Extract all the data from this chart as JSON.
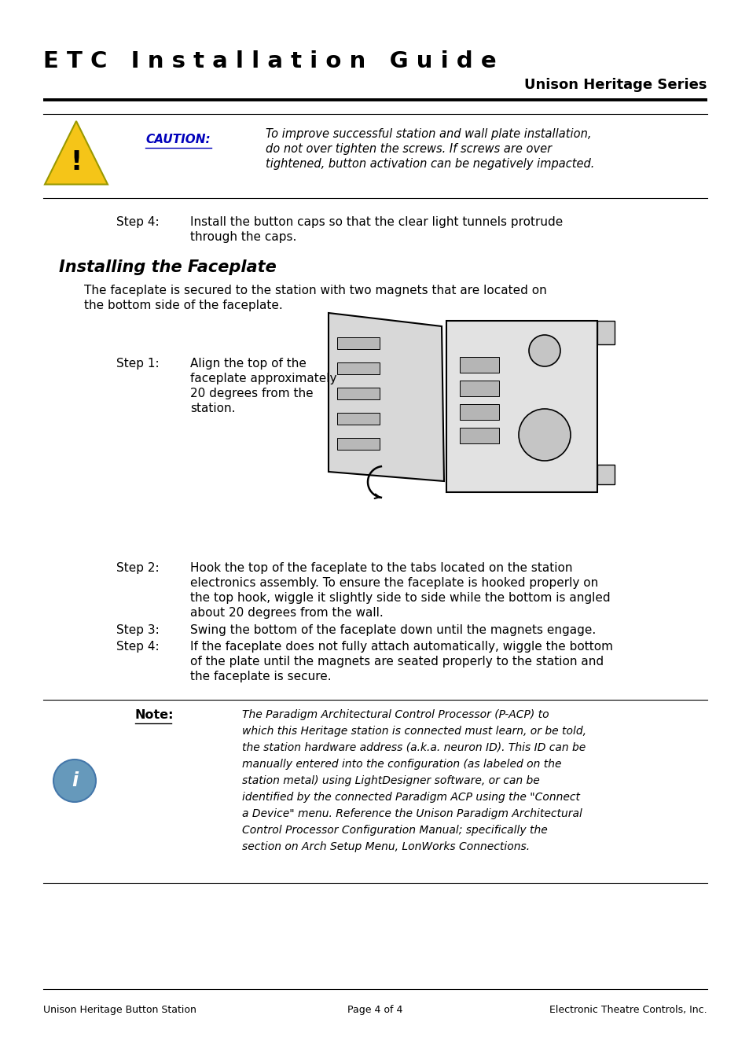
{
  "title": "E T C   I n s t a l l a t i o n   G u i d e",
  "subtitle": "Unison Heritage Series",
  "bg_color": "#ffffff",
  "text_color": "#000000",
  "caution_label": "CAUTION:",
  "caution_line1": "To improve successful station and wall plate installation,",
  "caution_line2": "do not over tighten the screws. If screws are over",
  "caution_line3": "tightened, button activation can be negatively impacted.",
  "step4_label": "Step 4:",
  "step4_line1": "Install the button caps so that the clear light tunnels protrude",
  "step4_line2": "through the caps.",
  "section_title": "Installing the Faceplate",
  "section_line1": "The faceplate is secured to the station with two magnets that are located on",
  "section_line2": "the bottom side of the faceplate.",
  "step1_label": "Step 1:",
  "step1_line1": "Align the top of the",
  "step1_line2": "faceplate approximately",
  "step1_line3": "20 degrees from the",
  "step1_line4": "station.",
  "step2_label": "Step 2:",
  "step2_line1": "Hook the top of the faceplate to the tabs located on the station",
  "step2_line2": "electronics assembly. To ensure the faceplate is hooked properly on",
  "step2_line3": "the top hook, wiggle it slightly side to side while the bottom is angled",
  "step2_line4": "about 20 degrees from the wall.",
  "step3_label": "Step 3:",
  "step3_line1": "Swing the bottom of the faceplate down until the magnets engage.",
  "step4b_label": "Step 4:",
  "step4b_line1": "If the faceplate does not fully attach automatically, wiggle the bottom",
  "step4b_line2": "of the plate until the magnets are seated properly to the station and",
  "step4b_line3": "the faceplate is secure.",
  "note_label": "Note:",
  "note_line1": "The Paradigm Architectural Control Processor (P-ACP) to",
  "note_line2": "which this Heritage station is connected must learn, or be told,",
  "note_line3": "the station hardware address (a.k.a. neuron ID). This ID can be",
  "note_line4": "manually entered into the configuration (as labeled on the",
  "note_line5": "station metal) using LightDesigner software, or can be",
  "note_line6": "identified by the connected Paradigm ACP using the \"Connect",
  "note_line7": "a Device\" menu. Reference the Unison Paradigm Architectural",
  "note_line8": "Control Processor Configuration Manual; specifically the",
  "note_line9": "section on Arch Setup Menu, LonWorks Connections.",
  "footer_left": "Unison Heritage Button Station",
  "footer_center": "Page 4 of 4",
  "footer_right": "Electronic Theatre Controls, Inc.",
  "caution_color": "#0000bb",
  "triangle_fill": "#f5c518",
  "triangle_edge": "#999900",
  "info_circle_color": "#6699bb",
  "info_circle_edge": "#4477aa"
}
